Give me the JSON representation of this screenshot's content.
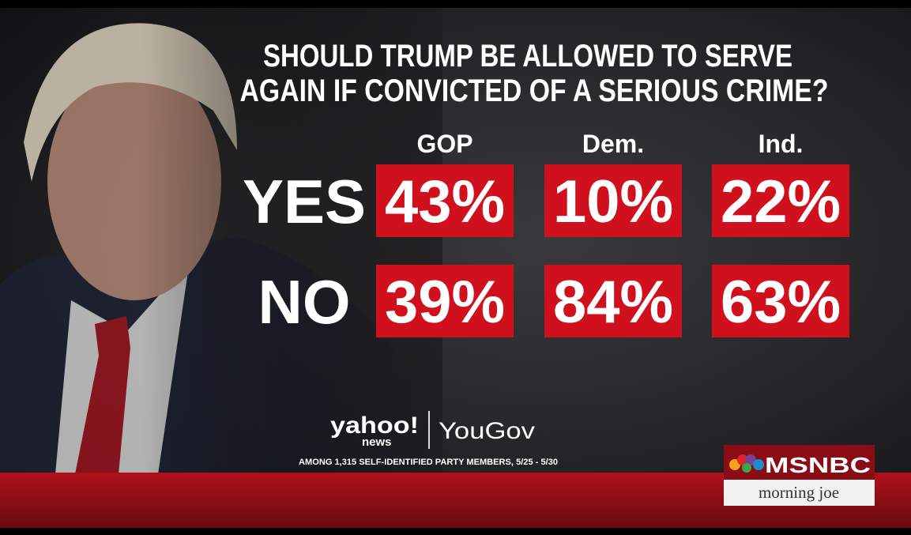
{
  "header": {
    "title_lines": [
      "SHOULD TRUMP BE ALLOWED TO SERVE",
      "AGAIN IF CONVICTED OF A SERIOUS CRIME?"
    ]
  },
  "table": {
    "columns": [
      "GOP",
      "Dem.",
      "Ind."
    ],
    "rows": [
      {
        "label": "YES",
        "cells": [
          "43%",
          "10%",
          "22%"
        ]
      },
      {
        "label": "NO",
        "cells": [
          "39%",
          "84%",
          "63%"
        ]
      }
    ]
  },
  "source": {
    "yahoo": "yahoo!",
    "news": "news",
    "yougov": "YouGov",
    "note": "AMONG 1,315 SELF-IDENTIFIED PARTY MEMBERS, 5/25 - 5/30"
  },
  "network": {
    "name": "MSNBC",
    "show": "morning joe"
  }
}
